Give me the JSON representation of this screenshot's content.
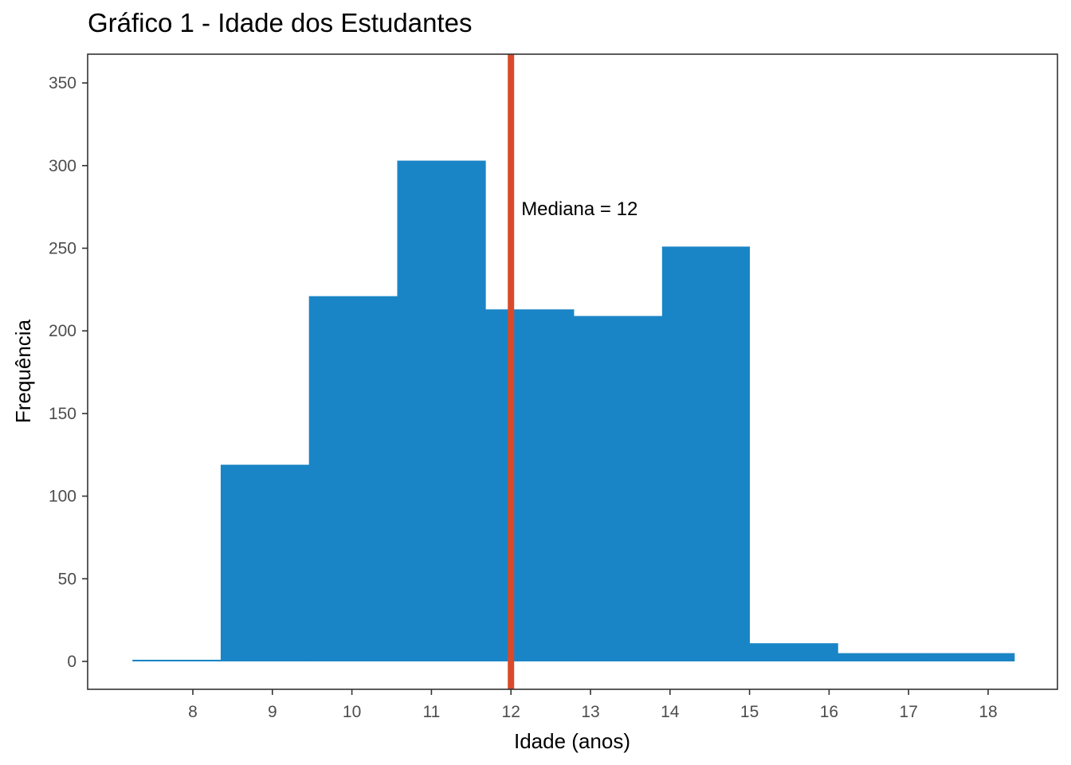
{
  "chart_data": {
    "type": "histogram",
    "title": "Gráfico 1 - Idade dos Estudantes",
    "xlabel": "Idade (anos)",
    "ylabel": "Frequência",
    "xlim": [
      7.2,
      18.3
    ],
    "ylim": [
      0,
      350
    ],
    "x_ticks": [
      8,
      9,
      10,
      11,
      12,
      13,
      14,
      15,
      16,
      17,
      18
    ],
    "y_ticks": [
      0,
      50,
      100,
      150,
      200,
      250,
      300,
      350
    ],
    "bins": [
      {
        "x0": 7.24,
        "x1": 8.35,
        "count": 1
      },
      {
        "x0": 8.35,
        "x1": 9.46,
        "count": 119
      },
      {
        "x0": 9.46,
        "x1": 10.57,
        "count": 221
      },
      {
        "x0": 10.57,
        "x1": 11.68,
        "count": 303
      },
      {
        "x0": 11.68,
        "x1": 12.79,
        "count": 213
      },
      {
        "x0": 12.79,
        "x1": 13.9,
        "count": 209
      },
      {
        "x0": 13.9,
        "x1": 15.0,
        "count": 251
      },
      {
        "x0": 15.0,
        "x1": 16.11,
        "count": 11
      },
      {
        "x0": 16.11,
        "x1": 17.22,
        "count": 5
      },
      {
        "x0": 17.22,
        "x1": 18.33,
        "count": 5
      }
    ],
    "median": 12,
    "median_label": "Mediana = 12",
    "bar_color": "#1a85c6",
    "median_color": "#d94a2b",
    "grid": false,
    "legend": "none"
  }
}
